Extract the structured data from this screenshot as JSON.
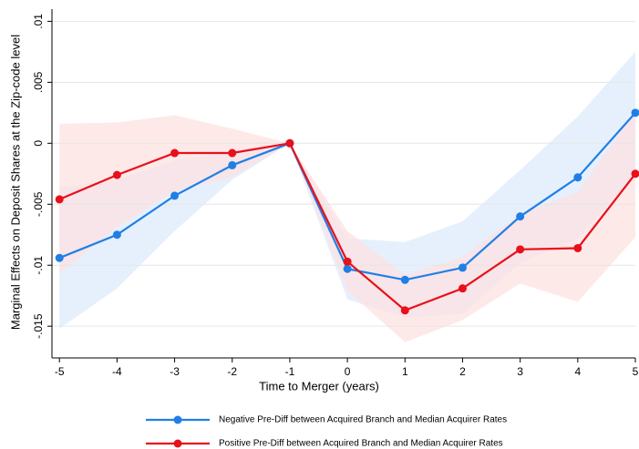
{
  "chart_data": {
    "type": "line",
    "xlabel": "Time to Merger (years)",
    "ylabel": "Marginal Effects on Deposit Shares at the Zip-code level",
    "x": [
      -5,
      -4,
      -3,
      -2,
      -1,
      0,
      1,
      2,
      3,
      4,
      5
    ],
    "xlim": [
      -5.13,
      5
    ],
    "xticks": [
      -5,
      -4,
      -3,
      -2,
      -1,
      0,
      1,
      2,
      3,
      4,
      5
    ],
    "ylim": [
      -0.0176,
      0.011
    ],
    "yticks": [
      {
        "value": -0.015,
        "label": "-.015"
      },
      {
        "value": -0.01,
        "label": "-.01"
      },
      {
        "value": -0.005,
        "label": "-.005"
      },
      0,
      {
        "value": 0.005,
        "label": ".005"
      },
      {
        "value": 0.01,
        "label": ".01"
      }
    ],
    "grid": true,
    "legend": "bottom",
    "series": [
      {
        "name": "Negative Pre-Diff between Acquired Branch and Median Acquirer Rates",
        "color": "#1f7fe6",
        "band_color": "#dbeafc",
        "values": [
          -0.0094,
          -0.0075,
          -0.0043,
          -0.0018,
          0,
          -0.0103,
          -0.0112,
          -0.0102,
          -0.006,
          -0.0028,
          0.0025
        ],
        "lower": [
          -0.0152,
          -0.0119,
          -0.0072,
          -0.003,
          0,
          -0.0128,
          -0.0143,
          -0.014,
          -0.0098,
          -0.0078,
          -0.0025
        ],
        "upper": [
          -0.0036,
          -0.003,
          -0.0014,
          -0.0006,
          0,
          -0.0078,
          -0.0081,
          -0.0064,
          -0.0022,
          0.0022,
          0.0075
        ]
      },
      {
        "name": "Positive Pre-Diff between Acquired Branch and Median Acquirer Rates",
        "color": "#e8101a",
        "band_color": "#fde0e0",
        "values": [
          -0.0046,
          -0.0026,
          -0.0008,
          -0.0008,
          0,
          -0.0097,
          -0.0137,
          -0.0119,
          -0.0087,
          -0.0086,
          -0.0025
        ],
        "lower": [
          -0.0107,
          -0.0069,
          -0.0039,
          -0.0028,
          0,
          -0.0121,
          -0.0163,
          -0.0145,
          -0.0115,
          -0.013,
          -0.0077
        ],
        "upper": [
          0.0016,
          0.0017,
          0.0023,
          0.0012,
          0,
          -0.0072,
          -0.0108,
          -0.0093,
          -0.0058,
          -0.004,
          0.0027
        ]
      }
    ]
  }
}
